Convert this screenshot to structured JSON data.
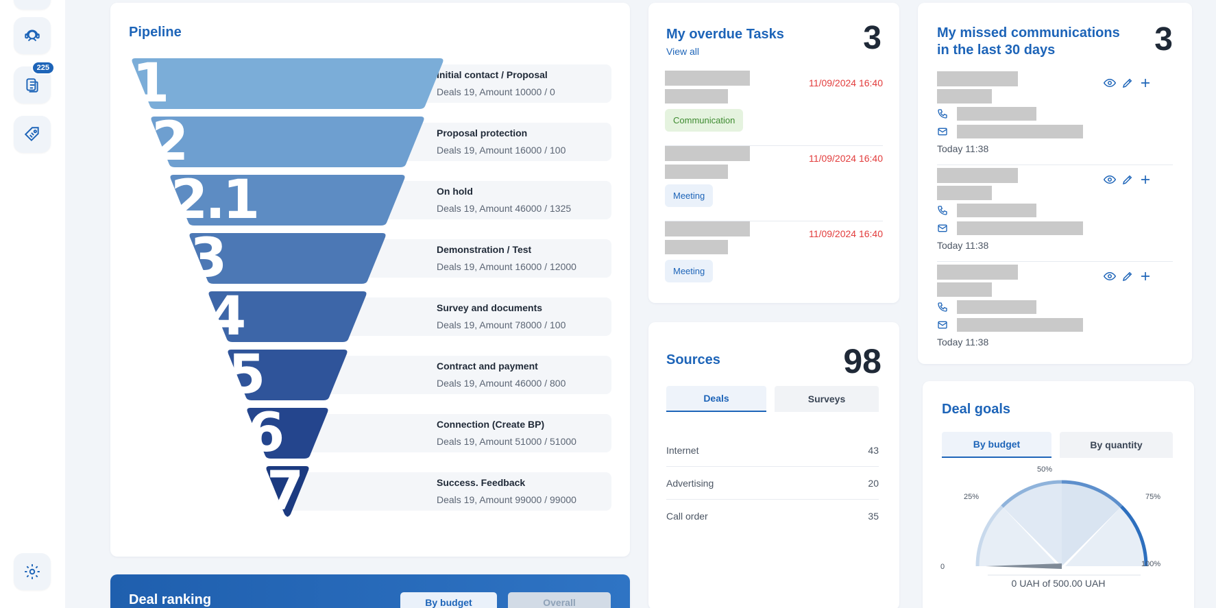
{
  "sidebar": {
    "items": [
      {
        "icon": "support-agent-icon"
      },
      {
        "icon": "documents-icon",
        "badge": "225"
      },
      {
        "icon": "price-tag-icon"
      },
      {
        "icon": "gear-icon"
      }
    ]
  },
  "pipeline": {
    "title": "Pipeline",
    "stages": [
      {
        "num": "1",
        "name": "Initial contact / Proposal",
        "summary": "Deals 19, Amount 10000 / 0",
        "color": "#7badd8"
      },
      {
        "num": "2",
        "name": "Proposal protection",
        "summary": "Deals 19, Amount 16000 / 100",
        "color": "#6e9fd0"
      },
      {
        "num": "2.1",
        "name": "On hold",
        "summary": "Deals 19, Amount 46000 / 1325",
        "color": "#5d8cc3"
      },
      {
        "num": "3",
        "name": "Demonstration / Test",
        "summary": "Deals 19, Amount 16000 / 12000",
        "color": "#4c78b5"
      },
      {
        "num": "4",
        "name": "Survey and documents",
        "summary": "Deals 19, Amount 78000 / 100",
        "color": "#3d66a8"
      },
      {
        "num": "5",
        "name": "Contract and payment",
        "summary": "Deals 19, Amount 46000 / 800",
        "color": "#2f549a"
      },
      {
        "num": "6",
        "name": "Connection (Create BP)",
        "summary": "Deals 19, Amount 51000 / 51000",
        "color": "#24458d"
      },
      {
        "num": "7",
        "name": "Success. Feedback",
        "summary": "Deals 19, Amount 99000 / 99000",
        "color": "#1b3a80"
      }
    ]
  },
  "tasks": {
    "title": "My overdue Tasks",
    "count": "3",
    "view_all": "View all",
    "items": [
      {
        "date": "11/09/2024 16:40",
        "tag": "Communication"
      },
      {
        "date": "11/09/2024 16:40",
        "tag": "Meeting"
      },
      {
        "date": "11/09/2024 16:40",
        "tag": "Meeting"
      }
    ]
  },
  "comms": {
    "title": "My missed communications in the last 30 days",
    "count": "3",
    "items": [
      {
        "time": "Today 11:38"
      },
      {
        "time": "Today 11:38"
      },
      {
        "time": "Today 11:38"
      }
    ]
  },
  "sources": {
    "title": "Sources",
    "count": "98",
    "tabs": [
      "Deals",
      "Surveys"
    ],
    "active_tab": "Deals",
    "rows": [
      {
        "label": "Internet",
        "value": "43"
      },
      {
        "label": "Advertising",
        "value": "20"
      },
      {
        "label": "Call order",
        "value": "35"
      }
    ]
  },
  "goals": {
    "title": "Deal goals",
    "tabs": [
      "By budget",
      "By quantity"
    ],
    "active_tab": "By budget",
    "gauge_labels": {
      "zero": "0",
      "p25": "25%",
      "p50": "50%",
      "p75": "75%",
      "p100": "100%"
    },
    "progress": 0,
    "caption": "0 UAH of 500.00 UAH"
  },
  "ranking": {
    "title": "Deal ranking",
    "tabs": [
      "By budget",
      "Overall"
    ],
    "active_tab": "By budget"
  }
}
